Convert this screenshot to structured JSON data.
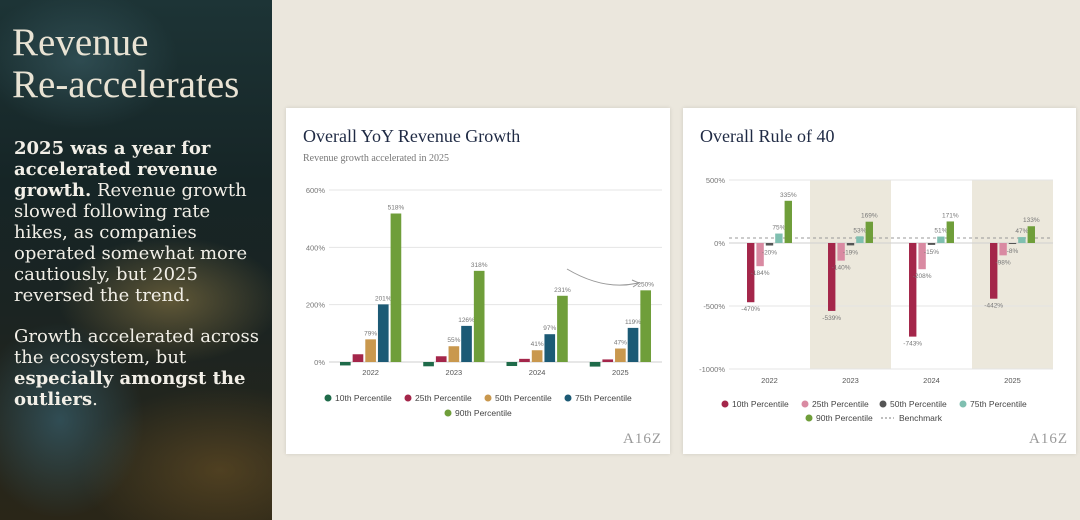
{
  "slide": {
    "title_line1": "Revenue",
    "title_line2": "Re-accelerates",
    "para1_bold": "2025 was a year for accelerated revenue growth.",
    "para1_rest": " Revenue growth slowed following rate hikes, as companies operated somewhat more cautiously, but 2025 reversed the trend.",
    "para2_start": "Growth accelerated across the ecosystem, but ",
    "para2_bold": "especially amongst the outliers",
    "para2_end": "."
  },
  "logo": "A16Z",
  "chart_data": [
    {
      "type": "bar",
      "title": "Overall YoY Revenue Growth",
      "subtitle": "Revenue growth accelerated in 2025",
      "categories": [
        "2022",
        "2023",
        "2024",
        "2025"
      ],
      "ylim": [
        0,
        600
      ],
      "yticks": [
        "0%",
        "200%",
        "400%",
        "600%"
      ],
      "ytick_values": [
        0,
        200,
        400,
        600
      ],
      "grid": true,
      "legend_position": "bottom",
      "annotation": "arrow indicating upturn into 2025",
      "series": [
        {
          "name": "10th Percentile",
          "color": "#1f6b4a",
          "values": [
            -12,
            -15,
            -14,
            -16
          ],
          "labels": [
            "",
            "",
            "",
            ""
          ]
        },
        {
          "name": "25th Percentile",
          "color": "#a4264a",
          "values": [
            27,
            20,
            11,
            9
          ],
          "labels": [
            "",
            "",
            "",
            ""
          ]
        },
        {
          "name": "50th Percentile",
          "color": "#c9984e",
          "values": [
            79,
            55,
            41,
            47
          ],
          "labels": [
            "79%",
            "55%",
            "41%",
            "47%"
          ]
        },
        {
          "name": "75th Percentile",
          "color": "#1c5a75",
          "values": [
            201,
            126,
            97,
            119
          ],
          "labels": [
            "201%",
            "126%",
            "97%",
            "119%"
          ]
        },
        {
          "name": "90th Percentile",
          "color": "#6f9e3a",
          "values": [
            518,
            318,
            231,
            250
          ],
          "labels": [
            "518%",
            "318%",
            "231%",
            "250%"
          ]
        }
      ]
    },
    {
      "type": "bar",
      "title": "Overall Rule of 40",
      "categories": [
        "2022",
        "2023",
        "2024",
        "2025"
      ],
      "ylim": [
        -1000,
        500
      ],
      "yticks": [
        "500%",
        "0%",
        "-500%",
        "-1000%"
      ],
      "ytick_values": [
        500,
        0,
        -500,
        -1000
      ],
      "grid": true,
      "legend_position": "bottom",
      "highlighted_categories": [
        "2023",
        "2025"
      ],
      "benchmark": {
        "name": "Benchmark",
        "value": 40
      },
      "series": [
        {
          "name": "10th Percentile",
          "color": "#a4264a",
          "values": [
            -470,
            -539,
            -743,
            -442
          ],
          "labels": [
            "-470%",
            "-539%",
            "-743%",
            "-442%"
          ]
        },
        {
          "name": "25th Percentile",
          "color": "#d98aa2",
          "values": [
            -184,
            -140,
            -208,
            -98
          ],
          "labels": [
            "-184%",
            "-140%",
            "-208%",
            "-98%"
          ]
        },
        {
          "name": "50th Percentile",
          "color": "#555555",
          "values": [
            -20,
            -19,
            -15,
            -8
          ],
          "labels": [
            "-20%",
            "-19%",
            "-15%",
            "-8%"
          ]
        },
        {
          "name": "75th Percentile",
          "color": "#7fbfb0",
          "values": [
            75,
            53,
            51,
            47
          ],
          "labels": [
            "75%",
            "53%",
            "51%",
            "47%"
          ]
        },
        {
          "name": "90th Percentile",
          "color": "#6f9e3a",
          "values": [
            335,
            169,
            171,
            133
          ],
          "labels": [
            "335%",
            "169%",
            "171%",
            "133%"
          ]
        }
      ]
    }
  ]
}
